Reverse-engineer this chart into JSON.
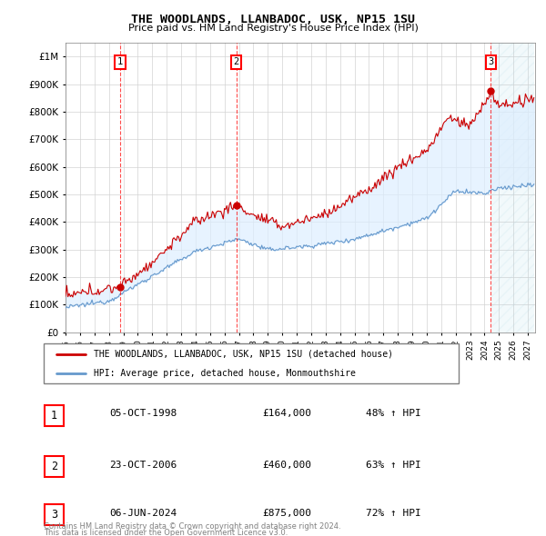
{
  "title": "THE WOODLANDS, LLANBADOC, USK, NP15 1SU",
  "subtitle": "Price paid vs. HM Land Registry's House Price Index (HPI)",
  "ylim": [
    0,
    1050000
  ],
  "xlim_start": 1995.0,
  "xlim_end": 2027.5,
  "yticks": [
    0,
    100000,
    200000,
    300000,
    400000,
    500000,
    600000,
    700000,
    800000,
    900000,
    1000000
  ],
  "ytick_labels": [
    "£0",
    "£100K",
    "£200K",
    "£300K",
    "£400K",
    "£500K",
    "£600K",
    "£700K",
    "£800K",
    "£900K",
    "£1M"
  ],
  "xticks": [
    1995,
    1996,
    1997,
    1998,
    1999,
    2000,
    2001,
    2002,
    2003,
    2004,
    2005,
    2006,
    2007,
    2008,
    2009,
    2010,
    2011,
    2012,
    2013,
    2014,
    2015,
    2016,
    2017,
    2018,
    2019,
    2020,
    2021,
    2022,
    2023,
    2024,
    2025,
    2026,
    2027
  ],
  "hpi_color": "#6699cc",
  "price_color": "#cc0000",
  "fill_color": "#ddeeff",
  "transactions": [
    {
      "num": 1,
      "date": "05-OCT-1998",
      "year": 1998.77,
      "price": 164000,
      "pct": "48%",
      "dir": "↑"
    },
    {
      "num": 2,
      "date": "23-OCT-2006",
      "year": 2006.81,
      "price": 460000,
      "pct": "63%",
      "dir": "↑"
    },
    {
      "num": 3,
      "date": "06-JUN-2024",
      "year": 2024.44,
      "price": 875000,
      "pct": "72%",
      "dir": "↑"
    }
  ],
  "legend_line1": "THE WOODLANDS, LLANBADOC, USK, NP15 1SU (detached house)",
  "legend_line2": "HPI: Average price, detached house, Monmouthshire",
  "footer1": "Contains HM Land Registry data © Crown copyright and database right 2024.",
  "footer2": "This data is licensed under the Open Government Licence v3.0."
}
